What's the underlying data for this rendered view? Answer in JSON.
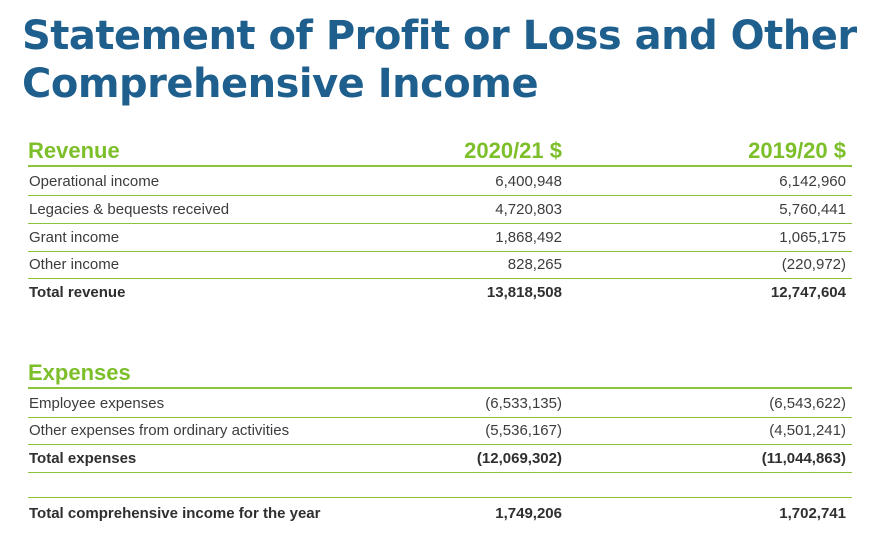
{
  "title": "Statement of Profit or Loss and Other Comprehensive Income",
  "columns": {
    "current": "2020/21 $",
    "previous": "2019/20 $"
  },
  "revenue": {
    "heading": "Revenue",
    "rows": [
      {
        "label": "Operational income",
        "current": "6,400,948",
        "previous": "6,142,960"
      },
      {
        "label": "Legacies & bequests received",
        "current": "4,720,803",
        "previous": "5,760,441"
      },
      {
        "label": "Grant income",
        "current": "1,868,492",
        "previous": "1,065,175"
      },
      {
        "label": "Other income",
        "current": "828,265",
        "previous": "(220,972)"
      }
    ],
    "total": {
      "label": "Total revenue",
      "current": "13,818,508",
      "previous": "12,747,604"
    }
  },
  "expenses": {
    "heading": "Expenses",
    "rows": [
      {
        "label": "Employee expenses",
        "current": "(6,533,135)",
        "previous": "(6,543,622)"
      },
      {
        "label": "Other expenses from ordinary activities",
        "current": "(5,536,167)",
        "previous": "(4,501,241)"
      }
    ],
    "total": {
      "label": "Total expenses",
      "current": "(12,069,302)",
      "previous": "(11,044,863)"
    }
  },
  "comprehensive": {
    "label": "Total comprehensive income for the year",
    "current": "1,749,206",
    "previous": "1,702,741"
  },
  "colors": {
    "title": "#1f5f8e",
    "accent": "#7dbf2a",
    "rule": "#8cc43c",
    "text": "#3c3c3c"
  }
}
